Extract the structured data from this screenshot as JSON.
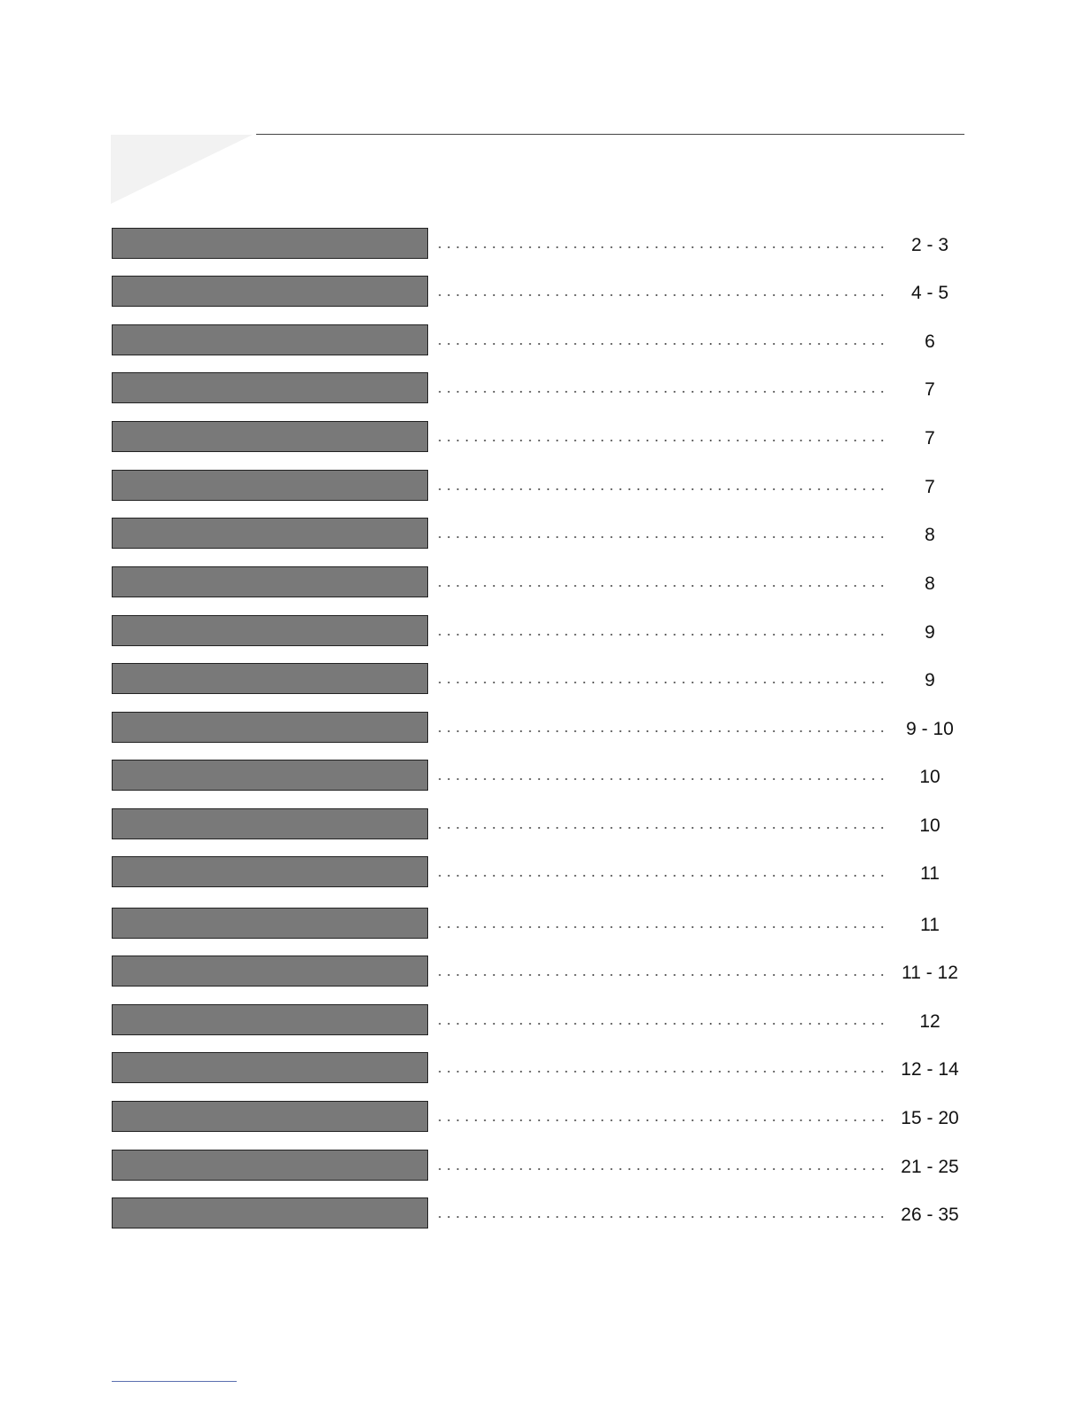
{
  "toc": {
    "entries": [
      {
        "pages": "2 - 3"
      },
      {
        "pages": "4 - 5"
      },
      {
        "pages": "6"
      },
      {
        "pages": "7"
      },
      {
        "pages": "7"
      },
      {
        "pages": "7"
      },
      {
        "pages": "8"
      },
      {
        "pages": "8"
      },
      {
        "pages": "9"
      },
      {
        "pages": "9"
      },
      {
        "pages": "9 - 10"
      },
      {
        "pages": "10"
      },
      {
        "pages": "10"
      },
      {
        "pages": "11"
      },
      {
        "pages": "11"
      },
      {
        "pages": "11 - 12"
      },
      {
        "pages": "12"
      },
      {
        "pages": "12 - 14"
      },
      {
        "pages": "15 - 20"
      },
      {
        "pages": "21 - 25"
      },
      {
        "pages": "26 - 35"
      }
    ]
  },
  "colors": {
    "bar_fill": "#797979",
    "bar_border": "#222222",
    "header_tab": "#f2f2f2",
    "rule": "#444444",
    "footer_line": "#5a6fb0"
  }
}
